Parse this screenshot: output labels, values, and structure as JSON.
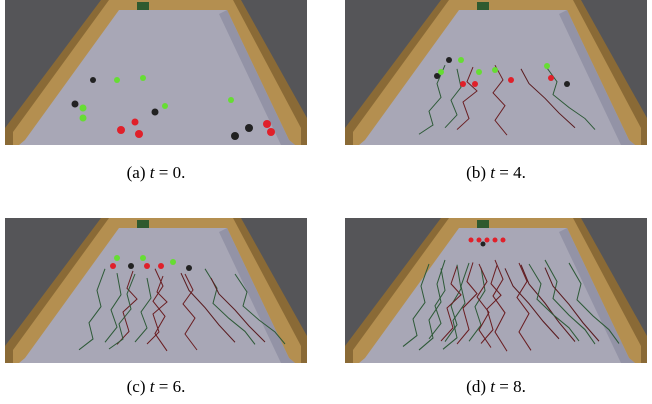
{
  "panels": [
    {
      "label": "(a)",
      "var": "t",
      "eq": "= 0."
    },
    {
      "label": "(b)",
      "var": "t",
      "eq": "= 4."
    },
    {
      "label": "(c)",
      "var": "t",
      "eq": "= 6."
    },
    {
      "label": "(d)",
      "var": "t",
      "eq": "= 8."
    }
  ]
}
